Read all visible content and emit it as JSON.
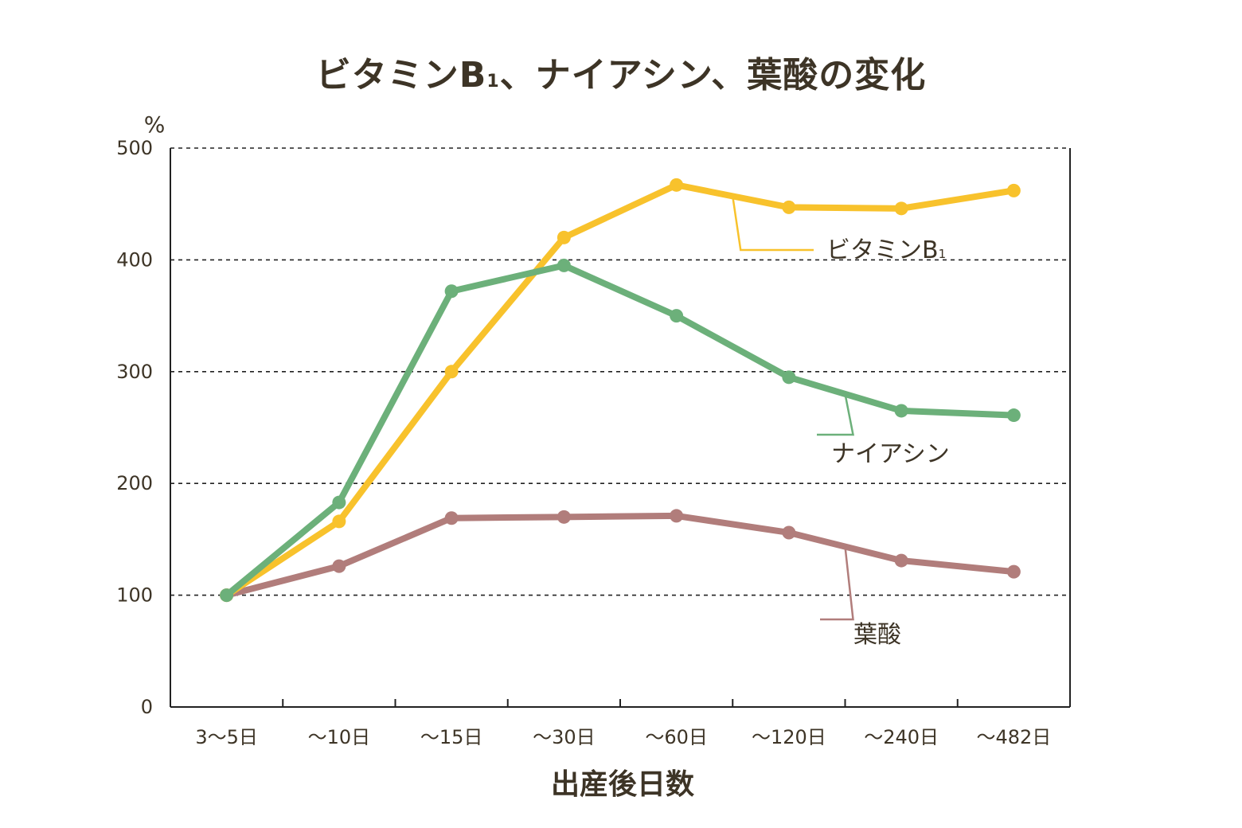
{
  "chart_data": {
    "type": "line",
    "title_main": "ビタミンB",
    "title_sub": "1",
    "title_rest": "、ナイアシン、葉酸の変化",
    "xlabel": "出産後日数",
    "ylabel": "%",
    "categories": [
      "3〜5日",
      "〜10日",
      "〜15日",
      "〜30日",
      "〜60日",
      "〜120日",
      "〜240日",
      "〜482日"
    ],
    "ylim": [
      0,
      500
    ],
    "yticks": [
      "0",
      "100",
      "200",
      "300",
      "400",
      "500"
    ],
    "grid": "horizontal dashed",
    "series": [
      {
        "name": "ビタミンB",
        "name_sub": "1",
        "color": "#f8c22c",
        "values": [
          100,
          166,
          300,
          420,
          467,
          447,
          446,
          462
        ]
      },
      {
        "name": "ナイアシン",
        "name_sub": "",
        "color": "#6cb07a",
        "values": [
          100,
          183,
          372,
          395,
          350,
          295,
          265,
          261
        ]
      },
      {
        "name": "葉酸",
        "name_sub": "",
        "color": "#b17d7b",
        "values": [
          100,
          126,
          169,
          170,
          171,
          156,
          131,
          121
        ]
      }
    ]
  }
}
